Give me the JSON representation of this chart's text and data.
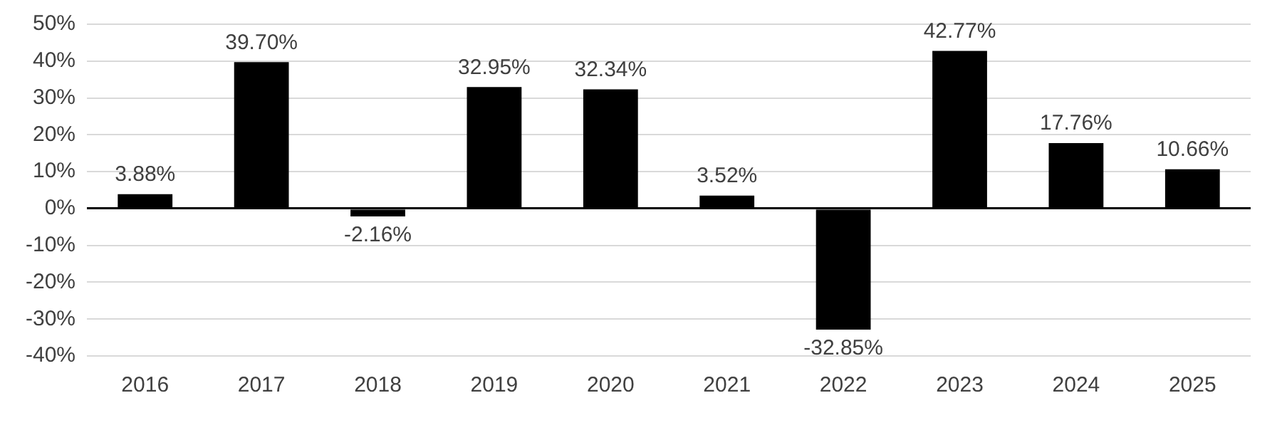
{
  "chart_data": {
    "type": "bar",
    "categories": [
      "2016",
      "2017",
      "2018",
      "2019",
      "2020",
      "2021",
      "2022",
      "2023",
      "2024",
      "2025"
    ],
    "values": [
      3.88,
      39.7,
      -2.16,
      32.95,
      32.34,
      3.52,
      -32.85,
      42.77,
      17.76,
      10.66
    ],
    "value_labels": [
      "3.88%",
      "39.70%",
      "-2.16%",
      "32.95%",
      "32.34%",
      "3.52%",
      "-32.85%",
      "42.77%",
      "17.76%",
      "10.66%"
    ],
    "color": "#000000",
    "ylim": [
      -40,
      50
    ],
    "yticks": [
      {
        "value": -40,
        "label": "-40%"
      },
      {
        "value": -30,
        "label": "-30%"
      },
      {
        "value": -20,
        "label": "-20%"
      },
      {
        "value": -10,
        "label": "-10%"
      },
      {
        "value": 0,
        "label": "0%"
      },
      {
        "value": 10,
        "label": "10%"
      },
      {
        "value": 20,
        "label": "20%"
      },
      {
        "value": 30,
        "label": "30%"
      },
      {
        "value": 40,
        "label": "40%"
      },
      {
        "value": 50,
        "label": "50%"
      }
    ],
    "grid": "y",
    "legend": false
  }
}
